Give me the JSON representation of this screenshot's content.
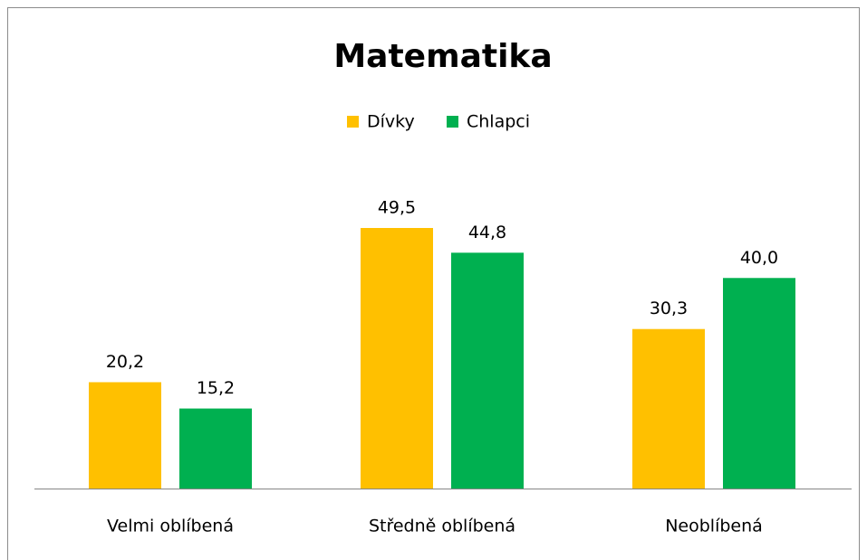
{
  "chart_data": {
    "type": "bar",
    "title": "Matematika",
    "categories": [
      "Velmi oblíbená",
      "Středně oblíbená",
      "Neoblíbená"
    ],
    "series": [
      {
        "name": "Dívky",
        "color": "#ffc000",
        "values": [
          20.2,
          49.5,
          30.3
        ],
        "value_labels": [
          "20,2",
          "49,5",
          "30,3"
        ]
      },
      {
        "name": "Chlapci",
        "color": "#00b050",
        "values": [
          15.2,
          44.8,
          40.0
        ],
        "value_labels": [
          "15,2",
          "44,8",
          "40,0"
        ]
      }
    ],
    "legend": "top"
  }
}
